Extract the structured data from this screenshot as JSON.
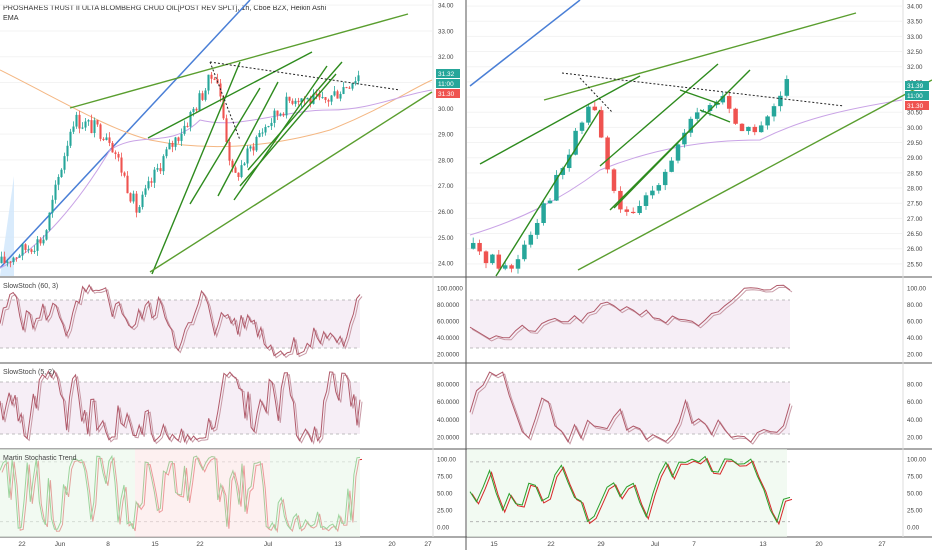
{
  "header": {
    "title": "PROSHARES TRUST II ULTA BLOMBERG CRUD OIL[POST REV SPLT], 1h, Cboe BZX, Heikin Ashi",
    "indicator": "EMA"
  },
  "price_badges": {
    "left": [
      "31.32",
      "11:00",
      "31.30"
    ],
    "right": [
      "31.39",
      "11:00",
      "31.30"
    ]
  },
  "colors": {
    "up": "#26a69a",
    "down": "#ef5350",
    "trendline": "#2e8b1e",
    "channel": "#5a9e2f",
    "longline": "#4a7fd6",
    "stoch_k": "#b05a6a",
    "stoch_d": "#c89aa6",
    "martin_green": "#2ca02c",
    "martin_red": "#d62728",
    "band_fill": "#f6eef6"
  },
  "panes": [
    {
      "name": "SlowStoch (60, 3)"
    },
    {
      "name": "SlowStoch (5, 2)"
    },
    {
      "name": "Martin Stochastic Trend"
    }
  ],
  "chart_data": [
    {
      "type": "candlestick",
      "chart": "left",
      "ylim": [
        23.5,
        34.2
      ],
      "yticks": [
        "34.00",
        "33.00",
        "32.00",
        "31.00",
        "30.00",
        "29.00",
        "28.00",
        "27.00",
        "26.00",
        "25.00",
        "24.00"
      ],
      "xticks": [
        "22",
        "Jun",
        "8",
        "15",
        "22",
        "Jul",
        "13",
        "20",
        "27"
      ]
    },
    {
      "type": "candlestick",
      "chart": "right",
      "ylim": [
        25.1,
        34.2
      ],
      "yticks": [
        "34.00",
        "33.50",
        "33.00",
        "32.50",
        "32.00",
        "31.50",
        "31.00",
        "30.50",
        "30.00",
        "29.50",
        "29.00",
        "28.50",
        "28.00",
        "27.50",
        "27.00",
        "26.50",
        "26.00",
        "25.50"
      ],
      "xticks": [
        "15",
        "22",
        "29",
        "Jul",
        "7",
        "13",
        "20",
        "27"
      ]
    },
    {
      "type": "line",
      "pane": "SlowStoch (60, 3)",
      "yticks": [
        "100.0000",
        "80.0000",
        "60.0000",
        "40.0000",
        "20.0000"
      ],
      "right_yticks": [
        "100.00",
        "80.00",
        "60.00",
        "40.00",
        "20.00"
      ]
    },
    {
      "type": "line",
      "pane": "SlowStoch (5, 2)",
      "yticks": [
        "80.0000",
        "60.0000",
        "40.0000",
        "20.0000"
      ],
      "right_yticks": [
        "80.00",
        "60.00",
        "40.00",
        "20.00"
      ]
    },
    {
      "type": "line",
      "pane": "Martin Stochastic Trend",
      "yticks": [
        "100.00",
        "75.00",
        "50.00",
        "25.00",
        "0.00"
      ],
      "right_yticks": [
        "100.00",
        "75.00",
        "50.00",
        "25.00",
        "0.00"
      ]
    }
  ]
}
